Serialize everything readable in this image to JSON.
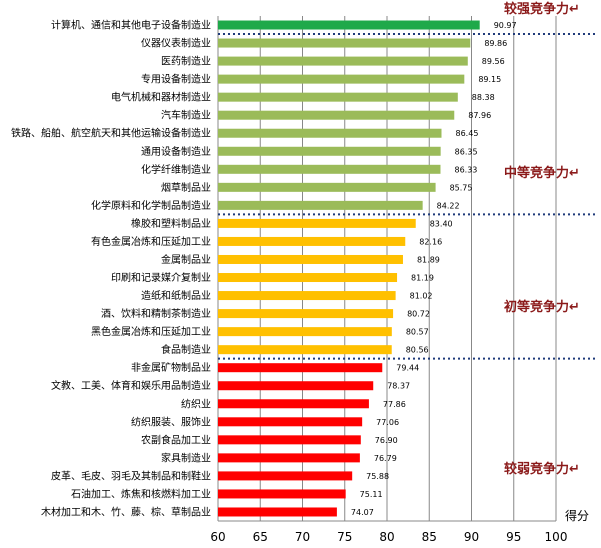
{
  "chart_data": {
    "type": "bar",
    "orientation": "horizontal",
    "xlabel": "得分",
    "xlim": [
      60,
      100
    ],
    "xticks": [
      60,
      65,
      70,
      75,
      80,
      85,
      90,
      95,
      100
    ],
    "grid": true,
    "categories": [
      "计算机、通信和其他电子设备制造业",
      "仪器仪表制造业",
      "医药制造业",
      "专用设备制造业",
      "电气机械和器材制造业",
      "汽车制造业",
      "铁路、船舶、航空航天和其他运输设备制造业",
      "通用设备制造业",
      "化学纤维制造业",
      "烟草制品业",
      "化学原料和化学制品制造业",
      "橡胶和塑料制品业",
      "有色金属冶炼和压延加工业",
      "金属制品业",
      "印刷和记录媒介复制业",
      "造纸和纸制品业",
      "酒、饮料和精制茶制造业",
      "黑色金属冶炼和压延加工业",
      "食品制造业",
      "非金属矿物制品业",
      "文教、工美、体育和娱乐用品制造业",
      "纺织业",
      "纺织服装、服饰业",
      "农副食品加工业",
      "家具制造业",
      "皮革、毛皮、羽毛及其制品和制鞋业",
      "石油加工、炼焦和核燃料加工业",
      "木材加工和木、竹、藤、棕、草制品业"
    ],
    "values": [
      90.97,
      89.86,
      89.56,
      89.15,
      88.38,
      87.96,
      86.45,
      86.35,
      86.33,
      85.75,
      84.22,
      83.4,
      82.16,
      81.89,
      81.19,
      81.02,
      80.72,
      80.57,
      80.56,
      79.44,
      78.37,
      77.86,
      77.06,
      76.9,
      76.79,
      75.88,
      75.11,
      74.07
    ],
    "tiers": [
      {
        "label": "较强竞争力",
        "start": 0,
        "end": 0,
        "color": "#1FA94A"
      },
      {
        "label": "中等竞争力",
        "start": 1,
        "end": 10,
        "color": "#9BBB59"
      },
      {
        "label": "初等竞争力",
        "start": 11,
        "end": 18,
        "color": "#FFC000"
      },
      {
        "label": "较弱竞争力",
        "start": 19,
        "end": 27,
        "color": "#FF0000"
      }
    ],
    "tier_mark": "↵"
  }
}
